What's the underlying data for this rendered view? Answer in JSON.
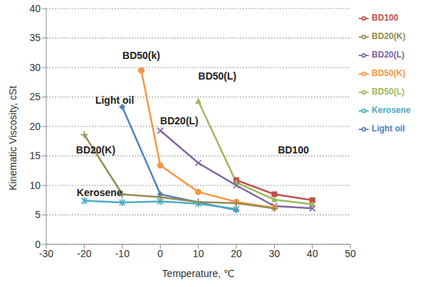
{
  "chart_data": {
    "type": "line",
    "x_label": "Temperature, ℃",
    "y_label": "Kinematic Viscosity, cSt",
    "x": [
      -20,
      -10,
      -5,
      0,
      10,
      20,
      30,
      40
    ],
    "series": [
      {
        "name": "Light oil",
        "color": "#4f81bd",
        "marker": "diamond",
        "values": [
          null,
          23.3,
          null,
          8.5,
          null,
          5.8,
          null,
          null
        ]
      },
      {
        "name": "BD100",
        "color": "#c0504d",
        "marker": "square",
        "values": [
          null,
          null,
          null,
          null,
          null,
          10.9,
          8.5,
          7.5
        ]
      },
      {
        "name": "BD50(L)",
        "color": "#9bbb59",
        "marker": "triangle",
        "values": [
          null,
          null,
          null,
          null,
          24.3,
          10.5,
          7.6,
          6.8
        ]
      },
      {
        "name": "BD20(L)",
        "color": "#8064a2",
        "marker": "x",
        "values": [
          null,
          null,
          null,
          19.3,
          13.8,
          10.0,
          6.5,
          6.1
        ]
      },
      {
        "name": "Kerosene",
        "color": "#4bacc6",
        "marker": "star",
        "values": [
          7.4,
          7.1,
          null,
          7.3,
          6.9,
          6.0,
          null,
          null
        ]
      },
      {
        "name": "BD50(K)",
        "color": "#f79646",
        "marker": "circle",
        "values": [
          null,
          null,
          29.5,
          13.4,
          8.9,
          7.2,
          6.2,
          null
        ]
      },
      {
        "name": "BD20(K)",
        "color": "#948a54",
        "marker": "plus",
        "values": [
          18.6,
          8.5,
          null,
          8.0,
          7.2,
          7.0,
          6.1,
          null
        ]
      }
    ],
    "annotations": [
      {
        "text": "BD50(k)",
        "x": -5,
        "y": 32
      },
      {
        "text": "BD50(L)",
        "x": 15,
        "y": 28.5
      },
      {
        "text": "Light oil",
        "x": -12,
        "y": 24.5
      },
      {
        "text": "BD20(L)",
        "x": 5,
        "y": 21
      },
      {
        "text": "BD20(K)",
        "x": -17,
        "y": 16
      },
      {
        "text": "Kerosene",
        "x": -16,
        "y": 8.8
      },
      {
        "text": "BD100",
        "x": 35,
        "y": 16
      }
    ],
    "xlim": [
      -30,
      50
    ],
    "xticks": [
      -30,
      -20,
      -10,
      0,
      10,
      20,
      30,
      40,
      50
    ],
    "ylim": [
      0,
      40
    ],
    "yticks": [
      0,
      5,
      10,
      15,
      20,
      25,
      30,
      35,
      40
    ],
    "grid": true,
    "legend": "right"
  }
}
